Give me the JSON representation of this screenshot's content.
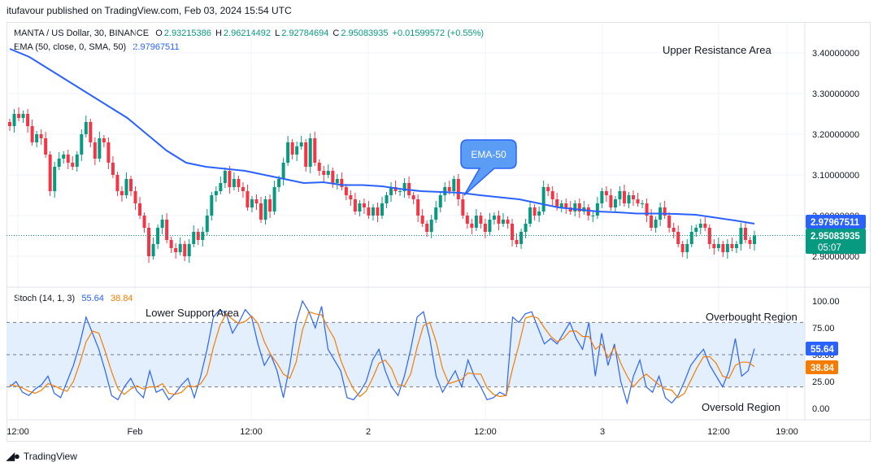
{
  "header": {
    "published": "itufavour published on TradingView.com, Feb 03, 2024 15:54 UTC"
  },
  "legend": {
    "symbol": "MANTA / US Dollar, 30, BINANCE",
    "o_label": "O",
    "o": "2.93215386",
    "h_label": "H",
    "h": "2.96214492",
    "l_label": "L",
    "l": "2.92784694",
    "c_label": "C",
    "c": "2.95083935",
    "change": "+0.01599572 (+0.55%)",
    "ema_label": "EMA (50, close, 0, SMA, 50)",
    "ema_value": "2.97967511",
    "stoch_label": "Stoch (14, 1, 3)",
    "stoch_k": "55.64",
    "stoch_d": "38.84"
  },
  "annotations": {
    "upper": "Upper Resistance Area",
    "lower": "Lower Support Area",
    "overbought": "Overbought Region",
    "oversold": "Oversold Region",
    "callout": "EMA-50"
  },
  "price_axis": {
    "ticks": [
      "3.40000000",
      "3.30000000",
      "3.20000000",
      "3.10000000",
      "3.00000000",
      "2.90000000"
    ],
    "ema_tag": "2.97967511",
    "price_tag": "2.95083935",
    "countdown": "05:07"
  },
  "stoch_axis": {
    "ticks": [
      "100.00",
      "75.00",
      "50.00",
      "25.00",
      "0.00"
    ],
    "k_tag": "55.64",
    "d_tag": "38.84"
  },
  "time_axis": {
    "labels": [
      "12:00",
      "Feb",
      "12:00",
      "2",
      "12:00",
      "3",
      "12:00",
      "19:00"
    ]
  },
  "footer": {
    "brand": "TradingView"
  },
  "colors": {
    "up": "#089981",
    "down": "#f23645",
    "ema": "#2962ff",
    "stoch_k": "#2962ff",
    "stoch_d": "#f57c00",
    "band": "#e3effd"
  },
  "chart_data": [
    {
      "type": "candlestick",
      "title": "MANTA / US Dollar, 30, BINANCE",
      "ylim": [
        2.8785,
        3.4622
      ],
      "x_ticks": [
        "12:00",
        "Feb",
        "12:00",
        "2",
        "12:00",
        "3",
        "12:00",
        "19:00"
      ],
      "candles_close": [
        3.22,
        3.25,
        3.24,
        3.25,
        3.22,
        3.18,
        3.2,
        3.19,
        3.15,
        3.06,
        3.12,
        3.14,
        3.15,
        3.13,
        3.12,
        3.15,
        3.2,
        3.23,
        3.18,
        3.14,
        3.19,
        3.18,
        3.13,
        3.1,
        3.06,
        3.05,
        3.09,
        3.06,
        3.03,
        3.0,
        2.97,
        2.9,
        2.93,
        2.97,
        2.99,
        2.94,
        2.92,
        2.91,
        2.93,
        2.9,
        2.93,
        2.96,
        2.94,
        2.96,
        3.0,
        3.05,
        3.06,
        3.08,
        3.11,
        3.07,
        3.09,
        3.07,
        3.06,
        3.02,
        3.04,
        3.03,
        2.99,
        3.04,
        3.01,
        3.07,
        3.09,
        3.13,
        3.18,
        3.15,
        3.17,
        3.18,
        3.12,
        3.19,
        3.13,
        3.11,
        3.1,
        3.11,
        3.08,
        3.09,
        3.07,
        3.05,
        3.04,
        3.01,
        3.03,
        3.02,
        3.0,
        3.02,
        3.0,
        3.03,
        3.05,
        3.07,
        3.06,
        3.06,
        3.08,
        3.05,
        3.04,
        3.0,
        2.98,
        2.96,
        2.99,
        3.02,
        3.05,
        3.07,
        3.06,
        3.09,
        3.04,
        3.0,
        2.98,
        2.97,
        3.0,
        2.98,
        2.96,
        2.99,
        3.0,
        2.98,
        2.99,
        2.98,
        2.94,
        2.93,
        2.96,
        2.98,
        3.02,
        3.0,
        3.01,
        3.07,
        3.06,
        3.04,
        3.02,
        3.03,
        3.02,
        3.01,
        3.03,
        3.01,
        3.02,
        3.0,
        3.0,
        3.03,
        3.06,
        3.05,
        3.02,
        3.04,
        3.06,
        3.03,
        3.05,
        3.04,
        3.03,
        3.03,
        3.0,
        2.97,
        2.99,
        3.02,
        3.0,
        2.97,
        2.96,
        2.93,
        2.91,
        2.93,
        2.96,
        2.97,
        2.98,
        2.97,
        2.93,
        2.92,
        2.93,
        2.91,
        2.93,
        2.92,
        2.93,
        2.97,
        2.94,
        2.93,
        2.951
      ],
      "ema_50": [
        3.41,
        3.39,
        3.36,
        3.33,
        3.3,
        3.27,
        3.24,
        3.2,
        3.16,
        3.13,
        3.12,
        3.115,
        3.11,
        3.1,
        3.09,
        3.08,
        3.082,
        3.075,
        3.075,
        3.072,
        3.065,
        3.06,
        3.058,
        3.056,
        3.05,
        3.045,
        3.04,
        3.03,
        3.02,
        3.015,
        3.01,
        3.008,
        3.005,
        3.005,
        3.004,
        3.002,
        2.995,
        2.988,
        2.98
      ],
      "series": [
        {
          "name": "Stoch %K (14)",
          "color": "#2962ff"
        },
        {
          "name": "Stoch %D (3)",
          "color": "#f57c00"
        }
      ]
    },
    {
      "type": "line",
      "title": "Stoch (14, 1, 3)",
      "ylim": [
        -5,
        105
      ],
      "bands": {
        "upper": 80,
        "middle": 50,
        "lower": 20
      },
      "stoch_k": [
        20,
        25,
        15,
        12,
        18,
        22,
        30,
        14,
        10,
        25,
        40,
        60,
        85,
        70,
        55,
        35,
        12,
        8,
        20,
        28,
        16,
        10,
        35,
        15,
        18,
        8,
        14,
        22,
        28,
        10,
        30,
        55,
        85,
        92,
        88,
        70,
        80,
        92,
        85,
        60,
        40,
        50,
        35,
        10,
        40,
        80,
        100,
        90,
        75,
        95,
        55,
        45,
        35,
        10,
        8,
        15,
        25,
        45,
        55,
        35,
        20,
        12,
        30,
        55,
        85,
        90,
        65,
        30,
        15,
        25,
        35,
        20,
        45,
        30,
        20,
        8,
        10,
        15,
        12,
        85,
        80,
        88,
        90,
        75,
        60,
        65,
        60,
        70,
        80,
        65,
        55,
        80,
        30,
        70,
        40,
        60,
        25,
        5,
        30,
        45,
        20,
        15,
        30,
        10,
        5,
        12,
        25,
        40,
        48,
        55,
        40,
        30,
        20,
        35,
        65,
        30,
        35,
        55.64
      ],
      "stoch_d": [
        22,
        21,
        19,
        16,
        14,
        17,
        23,
        21,
        18,
        16,
        25,
        42,
        62,
        72,
        70,
        53,
        34,
        18,
        13,
        18,
        21,
        18,
        20,
        20,
        23,
        14,
        13,
        15,
        21,
        20,
        23,
        32,
        57,
        77,
        88,
        83,
        79,
        81,
        86,
        79,
        62,
        50,
        42,
        32,
        28,
        43,
        73,
        90,
        88,
        87,
        75,
        65,
        45,
        30,
        18,
        11,
        16,
        28,
        42,
        45,
        37,
        22,
        21,
        32,
        57,
        77,
        80,
        62,
        37,
        23,
        25,
        27,
        33,
        32,
        32,
        19,
        13,
        11,
        12,
        37,
        59,
        84,
        86,
        84,
        75,
        67,
        62,
        65,
        72,
        72,
        67,
        67,
        55,
        60,
        47,
        57,
        42,
        30,
        20,
        27,
        32,
        27,
        22,
        18,
        17,
        10,
        14,
        26,
        38,
        48,
        48,
        42,
        30,
        28,
        40,
        43,
        43,
        38.84
      ],
      "series": [
        {
          "name": "%K",
          "color": "#2962ff"
        },
        {
          "name": "%D",
          "color": "#f57c00"
        }
      ]
    }
  ]
}
